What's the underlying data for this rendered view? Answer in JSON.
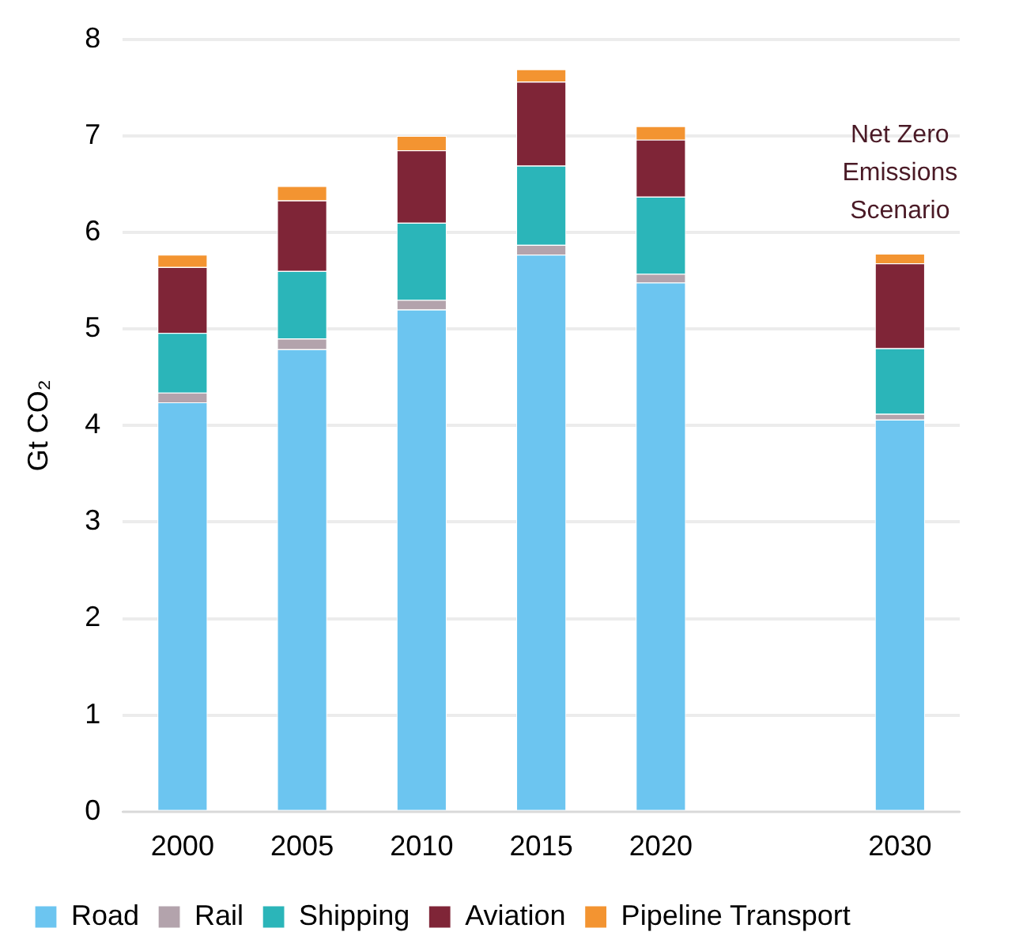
{
  "chart_data": {
    "type": "bar",
    "stacked": true,
    "ylabel": "Gt CO₂",
    "categories": [
      "2000",
      "2005",
      "2010",
      "2015",
      "2020",
      null,
      "2030"
    ],
    "series": [
      {
        "name": "Road",
        "color": "#6cc5f0",
        "values": [
          4.24,
          4.79,
          5.2,
          5.77,
          5.48,
          null,
          4.06
        ]
      },
      {
        "name": "Rail",
        "color": "#b3a3ac",
        "values": [
          0.1,
          0.11,
          0.1,
          0.1,
          0.09,
          null,
          0.06
        ]
      },
      {
        "name": "Shipping",
        "color": "#2bb5b9",
        "values": [
          0.62,
          0.7,
          0.8,
          0.82,
          0.8,
          null,
          0.68
        ]
      },
      {
        "name": "Aviation",
        "color": "#7f2537",
        "values": [
          0.68,
          0.73,
          0.75,
          0.87,
          0.59,
          null,
          0.88
        ]
      },
      {
        "name": "Pipeline Transport",
        "color": "#f39431",
        "values": [
          0.13,
          0.15,
          0.15,
          0.13,
          0.14,
          null,
          0.1
        ]
      }
    ],
    "ylim": [
      0,
      8
    ],
    "yticks": [
      0,
      1,
      2,
      3,
      4,
      5,
      6,
      7,
      8
    ],
    "grid": "y",
    "legend": "bottom",
    "annotations": [
      "Net Zero Emissions Scenario"
    ]
  }
}
